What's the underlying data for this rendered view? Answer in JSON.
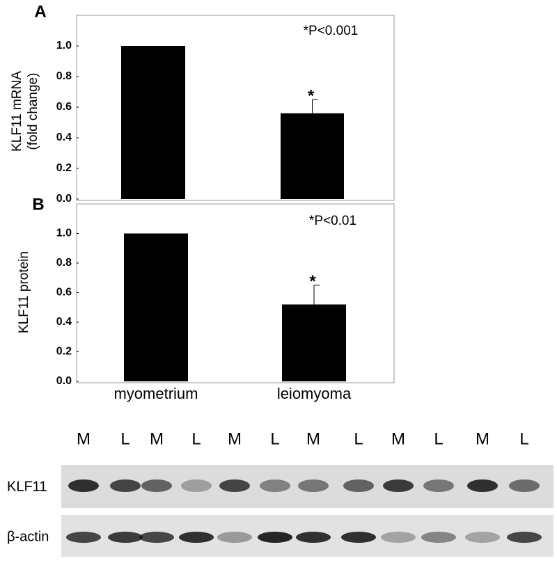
{
  "chart_data": [
    {
      "type": "bar",
      "panel": "A",
      "ylabel": [
        "KLF11 mRNA",
        "(fold change)"
      ],
      "annotation": "*P<0.001",
      "categories": [
        null,
        null
      ],
      "values": [
        1.0,
        0.56
      ],
      "errors": [
        null,
        0.09
      ],
      "bar_annotations": [
        null,
        "*"
      ],
      "color": "#000000",
      "ylim": [
        0,
        1.2
      ],
      "yticks": [
        {
          "value": 0,
          "label": "0.0"
        },
        {
          "value": 0.2,
          "label": "0.2"
        },
        {
          "value": 0.4,
          "label": "0.4"
        },
        {
          "value": 0.6,
          "label": "0.6"
        },
        {
          "value": 0.8,
          "label": "0.8"
        },
        {
          "value": 1.0,
          "label": "1.0"
        }
      ]
    },
    {
      "type": "bar",
      "panel": "B",
      "ylabel": [
        "KLF11 protein"
      ],
      "annotation": "*P<0.01",
      "categories": [
        "myometrium",
        "leiomyoma"
      ],
      "values": [
        1.0,
        0.52
      ],
      "errors": [
        null,
        0.13
      ],
      "bar_annotations": [
        null,
        "*"
      ],
      "color": "#000000",
      "ylim": [
        0,
        1.2
      ],
      "yticks": [
        {
          "value": 0,
          "label": "0.0"
        },
        {
          "value": 0.2,
          "label": "0.2"
        },
        {
          "value": 0.4,
          "label": "0.4"
        },
        {
          "value": 0.6,
          "label": "0.6"
        },
        {
          "value": 0.8,
          "label": "0.8"
        },
        {
          "value": 1.0,
          "label": "1.0"
        }
      ]
    }
  ],
  "blot": {
    "lanes": [
      "M",
      "L",
      "M",
      "L",
      "M",
      "L",
      "M",
      "L",
      "M",
      "L",
      "M",
      "L"
    ],
    "rows": [
      "KLF11",
      "β-actin"
    ]
  }
}
